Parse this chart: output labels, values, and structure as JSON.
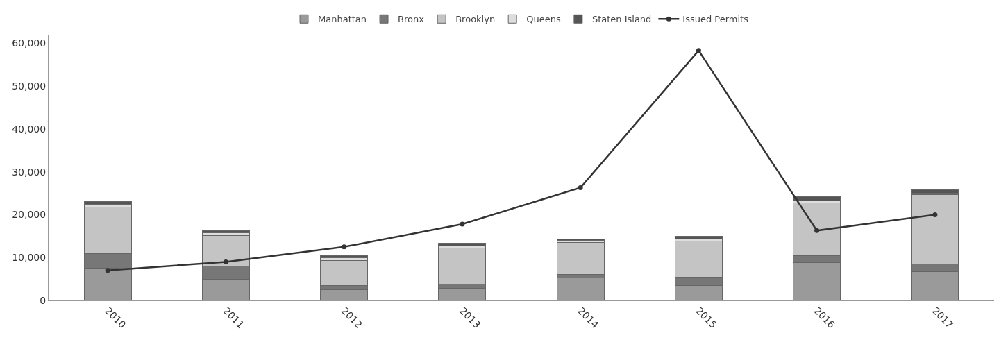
{
  "chart_data": {
    "type": "bar",
    "stacked": true,
    "categories": [
      "2010",
      "2011",
      "2012",
      "2013",
      "2014",
      "2015",
      "2016",
      "2017"
    ],
    "ylim": [
      0,
      62000
    ],
    "yticks": [
      {
        "value": 0,
        "label": "0"
      },
      {
        "value": 10000,
        "label": "10,000"
      },
      {
        "value": 20000,
        "label": "20,000"
      },
      {
        "value": 30000,
        "label": "30,000"
      },
      {
        "value": 40000,
        "label": "40,000"
      },
      {
        "value": 50000,
        "label": "50,000"
      },
      {
        "value": 60000,
        "label": "60,000"
      }
    ],
    "legend": "top",
    "marker": "circle",
    "series": [
      {
        "name": "Manhattan",
        "color": "#9a9a9a",
        "values": [
          7500,
          5000,
          2500,
          2800,
          5200,
          3500,
          8800,
          6700
        ]
      },
      {
        "name": "Bronx",
        "color": "#777777",
        "values": [
          3500,
          3000,
          1000,
          1000,
          800,
          2000,
          1700,
          1800
        ]
      },
      {
        "name": "Brooklyn",
        "color": "#c4c4c4",
        "values": [
          10800,
          7200,
          5800,
          8400,
          7500,
          8300,
          12200,
          16200
        ]
      },
      {
        "name": "Queens",
        "color": "#dddddd",
        "values": [
          700,
          600,
          700,
          500,
          500,
          500,
          500,
          300
        ]
      },
      {
        "name": "Staten Island",
        "color": "#555555",
        "values": [
          500,
          500,
          500,
          600,
          300,
          700,
          1000,
          800
        ]
      },
      {
        "name": "Issued Permits",
        "type": "line",
        "color": "#333333",
        "values": [
          7000,
          9000,
          12500,
          17800,
          26300,
          58300,
          16300,
          20000
        ]
      }
    ]
  }
}
